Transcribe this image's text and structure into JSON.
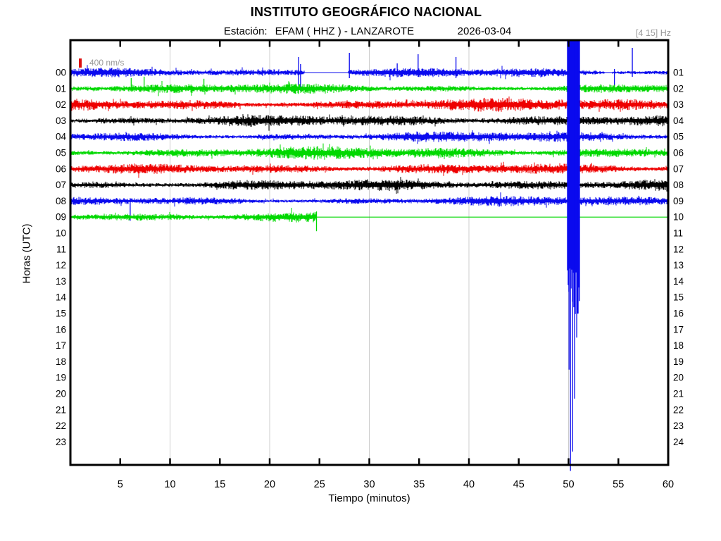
{
  "header": {
    "title": "INSTITUTO GEOGRÁFICO NACIONAL",
    "station_label": "Estación:",
    "station": "EFAM ( HHZ ) - LANZAROTE",
    "date": "2026-03-04",
    "filter": "[4 15] Hz"
  },
  "scale": {
    "label": "400 nm/s",
    "marker_color": "#dd1111"
  },
  "axes": {
    "x_label": "Tiempo (minutos)",
    "y_label": "Horas (UTC)",
    "x_ticks": [
      5,
      10,
      15,
      20,
      25,
      30,
      35,
      40,
      45,
      50,
      55,
      60
    ],
    "grid_minutes": [
      10,
      20,
      30,
      40,
      50
    ],
    "x_range_minutes": [
      0,
      60
    ],
    "left_hours": [
      "00",
      "01",
      "02",
      "03",
      "04",
      "05",
      "06",
      "07",
      "08",
      "09",
      "10",
      "11",
      "12",
      "13",
      "14",
      "15",
      "16",
      "17",
      "18",
      "19",
      "20",
      "21",
      "22",
      "23"
    ],
    "right_hours": [
      "01",
      "02",
      "03",
      "04",
      "05",
      "06",
      "07",
      "08",
      "09",
      "10",
      "11",
      "12",
      "13",
      "14",
      "15",
      "16",
      "17",
      "18",
      "19",
      "20",
      "21",
      "22",
      "23",
      "24"
    ],
    "grid_color": "#cccccc",
    "frame_color": "#000000"
  },
  "chart_data": {
    "type": "helicorder",
    "station": "EFAM",
    "channel": "HHZ",
    "location": "LANZAROTE",
    "date": "2026-03-04",
    "bandpass_hz": [
      4,
      15
    ],
    "scale_nm_per_s": 400,
    "minutes_per_row": 60,
    "rows_hours_utc": 24,
    "color_cycle": [
      "#0a0aee",
      "#00d800",
      "#ee0000",
      "#000000"
    ],
    "traces": [
      {
        "hour": "00",
        "color": "#0a0aee",
        "amp": 6.5,
        "gaps": [
          {
            "from": 23.5,
            "to": 27.9
          },
          {
            "from": 53.6,
            "to": 54.4
          }
        ],
        "spikes": [
          {
            "m": 22.9,
            "up": 22,
            "dn": 18
          },
          {
            "m": 23.1,
            "up": 12,
            "dn": 26
          },
          {
            "m": 28.0,
            "up": 28,
            "dn": 8
          },
          {
            "m": 32.8,
            "up": 13,
            "dn": 6
          },
          {
            "m": 34.9,
            "up": 26,
            "dn": 6
          },
          {
            "m": 38.7,
            "up": 22,
            "dn": 8
          },
          {
            "m": 54.6,
            "up": 5,
            "dn": 18
          },
          {
            "m": 56.4,
            "up": 35,
            "dn": 6
          }
        ]
      },
      {
        "hour": "01",
        "color": "#00d800",
        "amp": 7.5,
        "spikes": [
          {
            "m": 6.1,
            "up": 15,
            "dn": 4
          },
          {
            "m": 7.4,
            "up": 17,
            "dn": 4
          },
          {
            "m": 13.4,
            "up": 14,
            "dn": 5
          }
        ]
      },
      {
        "hour": "02",
        "color": "#ee0000",
        "amp": 9.0
      },
      {
        "hour": "03",
        "color": "#000000",
        "amp": 8.0
      },
      {
        "hour": "04",
        "color": "#0a0aee",
        "amp": 7.0
      },
      {
        "hour": "05",
        "color": "#00d800",
        "amp": 8.0
      },
      {
        "hour": "06",
        "color": "#ee0000",
        "amp": 7.0
      },
      {
        "hour": "07",
        "color": "#000000",
        "amp": 8.5
      },
      {
        "hour": "08",
        "color": "#0a0aee",
        "amp": 6.5,
        "spikes": [
          {
            "m": 6.0,
            "up": 4,
            "dn": 28
          }
        ]
      },
      {
        "hour": "09",
        "color": "#00d800",
        "amp": 7.5,
        "data_end": 24.7,
        "flat_to": 60,
        "spikes": [
          {
            "m": 24.7,
            "up": 8,
            "dn": 20
          }
        ]
      }
    ],
    "quiet_hours": [
      "10",
      "11",
      "12",
      "13",
      "14",
      "15",
      "16",
      "17",
      "18",
      "19",
      "20",
      "21",
      "22",
      "23"
    ],
    "big_event": {
      "row": 8,
      "color": "#0a0aee",
      "start_min": 49.85,
      "end_min": 51.1,
      "solid_bottom_row": 13.7,
      "tails": [
        {
          "min": 50.05,
          "to_row": 18.5
        },
        {
          "min": 50.19,
          "to_row": 24.8
        },
        {
          "min": 50.4,
          "to_row": 23.6
        },
        {
          "min": 50.61,
          "to_row": 20.3
        },
        {
          "min": 50.82,
          "to_row": 16.5
        },
        {
          "min": 50.96,
          "to_row": 10.0
        }
      ]
    }
  }
}
